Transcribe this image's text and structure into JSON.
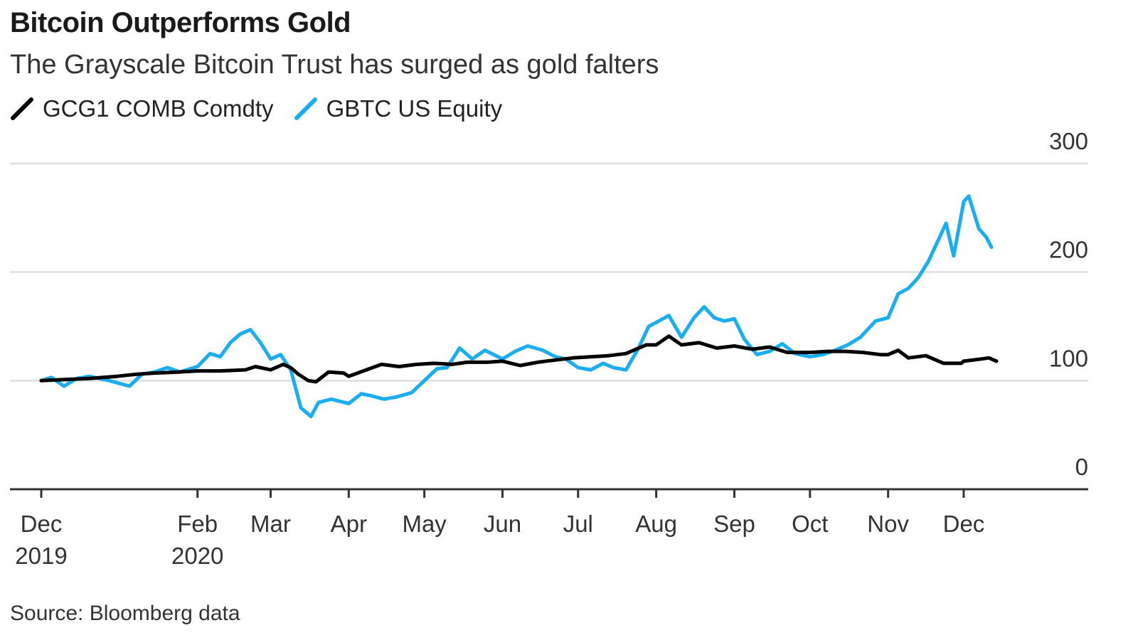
{
  "title": "Bitcoin Outperforms Gold",
  "subtitle": "The Grayscale Bitcoin Trust has surged as gold falters",
  "source": "Source: Bloomberg data",
  "legend": [
    {
      "name": "GCG1 COMB Comdty",
      "color": "#000000"
    },
    {
      "name": "GBTC US Equity",
      "color": "#1aaef0"
    }
  ],
  "chart_data": {
    "type": "line",
    "title": "Bitcoin Outperforms Gold",
    "subtitle": "The Grayscale Bitcoin Trust has surged as gold falters",
    "ylim": [
      0,
      300
    ],
    "yticks": [
      0,
      100,
      200,
      300
    ],
    "xlim": [
      "2019-12-01",
      "2020-12-25"
    ],
    "grid": true,
    "legend_position": "top-left",
    "xticks": [
      {
        "date": "2019-12-01",
        "label": "Dec",
        "sublabel": "2019"
      },
      {
        "date": "2020-02-01",
        "label": "Feb",
        "sublabel": "2020"
      },
      {
        "date": "2020-03-01",
        "label": "Mar",
        "sublabel": ""
      },
      {
        "date": "2020-04-01",
        "label": "Apr",
        "sublabel": ""
      },
      {
        "date": "2020-05-01",
        "label": "May",
        "sublabel": ""
      },
      {
        "date": "2020-06-01",
        "label": "Jun",
        "sublabel": ""
      },
      {
        "date": "2020-07-01",
        "label": "Jul",
        "sublabel": ""
      },
      {
        "date": "2020-08-01",
        "label": "Aug",
        "sublabel": ""
      },
      {
        "date": "2020-09-01",
        "label": "Sep",
        "sublabel": ""
      },
      {
        "date": "2020-10-01",
        "label": "Oct",
        "sublabel": ""
      },
      {
        "date": "2020-11-01",
        "label": "Nov",
        "sublabel": ""
      },
      {
        "date": "2020-12-01",
        "label": "Dec",
        "sublabel": ""
      }
    ],
    "series": [
      {
        "name": "GCG1 COMB Comdty",
        "color": "#000000",
        "points": [
          [
            "2019-12-01",
            100
          ],
          [
            "2019-12-10",
            101
          ],
          [
            "2019-12-20",
            102
          ],
          [
            "2019-12-31",
            104
          ],
          [
            "2020-01-08",
            106
          ],
          [
            "2020-01-15",
            107
          ],
          [
            "2020-01-25",
            108
          ],
          [
            "2020-02-01",
            109
          ],
          [
            "2020-02-10",
            109
          ],
          [
            "2020-02-20",
            110
          ],
          [
            "2020-02-24",
            113
          ],
          [
            "2020-03-01",
            110
          ],
          [
            "2020-03-06",
            115
          ],
          [
            "2020-03-09",
            112
          ],
          [
            "2020-03-12",
            106
          ],
          [
            "2020-03-16",
            100
          ],
          [
            "2020-03-19",
            99
          ],
          [
            "2020-03-24",
            108
          ],
          [
            "2020-03-30",
            107
          ],
          [
            "2020-04-01",
            104
          ],
          [
            "2020-04-08",
            110
          ],
          [
            "2020-04-14",
            115
          ],
          [
            "2020-04-21",
            113
          ],
          [
            "2020-04-28",
            115
          ],
          [
            "2020-05-05",
            116
          ],
          [
            "2020-05-12",
            115
          ],
          [
            "2020-05-18",
            117
          ],
          [
            "2020-05-26",
            117
          ],
          [
            "2020-06-01",
            118
          ],
          [
            "2020-06-08",
            114
          ],
          [
            "2020-06-15",
            117
          ],
          [
            "2020-06-22",
            119
          ],
          [
            "2020-06-29",
            121
          ],
          [
            "2020-07-06",
            122
          ],
          [
            "2020-07-13",
            123
          ],
          [
            "2020-07-20",
            125
          ],
          [
            "2020-07-24",
            129
          ],
          [
            "2020-07-28,",
            133
          ],
          [
            "2020-08-01",
            133
          ],
          [
            "2020-08-06",
            141
          ],
          [
            "2020-08-11",
            133
          ],
          [
            "2020-08-18",
            135
          ],
          [
            "2020-08-25",
            130
          ],
          [
            "2020-09-01",
            132
          ],
          [
            "2020-09-08",
            129
          ],
          [
            "2020-09-15",
            131
          ],
          [
            "2020-09-22",
            126
          ],
          [
            "2020-09-29",
            126
          ],
          [
            "2020-10-01",
            126
          ],
          [
            "2020-10-08",
            127
          ],
          [
            "2020-10-15",
            127
          ],
          [
            "2020-10-22",
            126
          ],
          [
            "2020-10-29",
            124
          ],
          [
            "2020-11-01",
            124
          ],
          [
            "2020-11-05",
            128
          ],
          [
            "2020-11-09",
            121
          ],
          [
            "2020-11-16",
            123
          ],
          [
            "2020-11-23",
            116
          ],
          [
            "2020-11-30",
            116
          ],
          [
            "2020-12-01",
            118
          ],
          [
            "2020-12-08",
            120
          ],
          [
            "2020-12-11",
            121
          ],
          [
            "2020-12-14",
            118
          ]
        ]
      },
      {
        "name": "GBTC US Equity",
        "color": "#1aaef0",
        "points": [
          [
            "2019-12-01",
            100
          ],
          [
            "2019-12-05",
            103
          ],
          [
            "2019-12-10",
            95
          ],
          [
            "2019-12-15",
            102
          ],
          [
            "2019-12-20",
            104
          ],
          [
            "2019-12-28",
            100
          ],
          [
            "2020-01-05",
            95
          ],
          [
            "2020-01-10",
            106
          ],
          [
            "2020-01-15",
            108
          ],
          [
            "2020-01-20",
            112
          ],
          [
            "2020-01-25",
            108
          ],
          [
            "2020-02-01",
            113
          ],
          [
            "2020-02-06",
            125
          ],
          [
            "2020-02-10",
            122
          ],
          [
            "2020-02-14",
            135
          ],
          [
            "2020-02-18",
            143
          ],
          [
            "2020-02-22",
            147
          ],
          [
            "2020-02-26",
            135
          ],
          [
            "2020-03-01",
            120
          ],
          [
            "2020-03-05",
            124
          ],
          [
            "2020-03-09",
            110
          ],
          [
            "2020-03-13",
            75
          ],
          [
            "2020-03-17",
            67
          ],
          [
            "2020-03-20",
            80
          ],
          [
            "2020-03-25",
            83
          ],
          [
            "2020-04-01",
            79
          ],
          [
            "2020-04-06",
            88
          ],
          [
            "2020-04-10",
            86
          ],
          [
            "2020-04-15",
            83
          ],
          [
            "2020-04-20",
            85
          ],
          [
            "2020-04-26",
            89
          ],
          [
            "2020-05-01",
            100
          ],
          [
            "2020-05-06",
            111
          ],
          [
            "2020-05-10",
            112
          ],
          [
            "2020-05-15",
            130
          ],
          [
            "2020-05-20",
            120
          ],
          [
            "2020-05-25",
            128
          ],
          [
            "2020-06-01",
            120
          ],
          [
            "2020-06-06",
            127
          ],
          [
            "2020-06-11",
            132
          ],
          [
            "2020-06-17",
            128
          ],
          [
            "2020-06-22",
            122
          ],
          [
            "2020-06-26",
            120
          ],
          [
            "2020-07-01",
            112
          ],
          [
            "2020-07-06",
            110
          ],
          [
            "2020-07-11",
            116
          ],
          [
            "2020-07-15",
            112
          ],
          [
            "2020-07-20",
            110
          ],
          [
            "2020-07-25",
            130
          ],
          [
            "2020-07-29",
            150
          ],
          [
            "2020-08-02",
            155
          ],
          [
            "2020-08-06",
            160
          ],
          [
            "2020-08-11",
            140
          ],
          [
            "2020-08-16",
            158
          ],
          [
            "2020-08-20",
            168
          ],
          [
            "2020-08-24",
            158
          ],
          [
            "2020-08-28",
            155
          ],
          [
            "2020-09-01",
            157
          ],
          [
            "2020-09-05",
            138
          ],
          [
            "2020-09-10",
            124
          ],
          [
            "2020-09-15",
            127
          ],
          [
            "2020-09-20",
            134
          ],
          [
            "2020-09-25",
            125
          ],
          [
            "2020-10-01",
            122
          ],
          [
            "2020-10-06",
            124
          ],
          [
            "2020-10-11",
            128
          ],
          [
            "2020-10-16",
            133
          ],
          [
            "2020-10-21",
            140
          ],
          [
            "2020-10-27",
            155
          ],
          [
            "2020-11-01",
            158
          ],
          [
            "2020-11-05",
            180
          ],
          [
            "2020-11-09",
            185
          ],
          [
            "2020-11-13",
            195
          ],
          [
            "2020-11-17",
            210
          ],
          [
            "2020-11-21",
            230
          ],
          [
            "2020-11-24",
            245
          ],
          [
            "2020-11-27",
            215
          ],
          [
            "2020-12-01",
            265
          ],
          [
            "2020-12-03",
            270
          ],
          [
            "2020-12-07",
            240
          ],
          [
            "2020-12-10",
            232
          ],
          [
            "2020-12-12",
            223
          ]
        ]
      }
    ]
  }
}
